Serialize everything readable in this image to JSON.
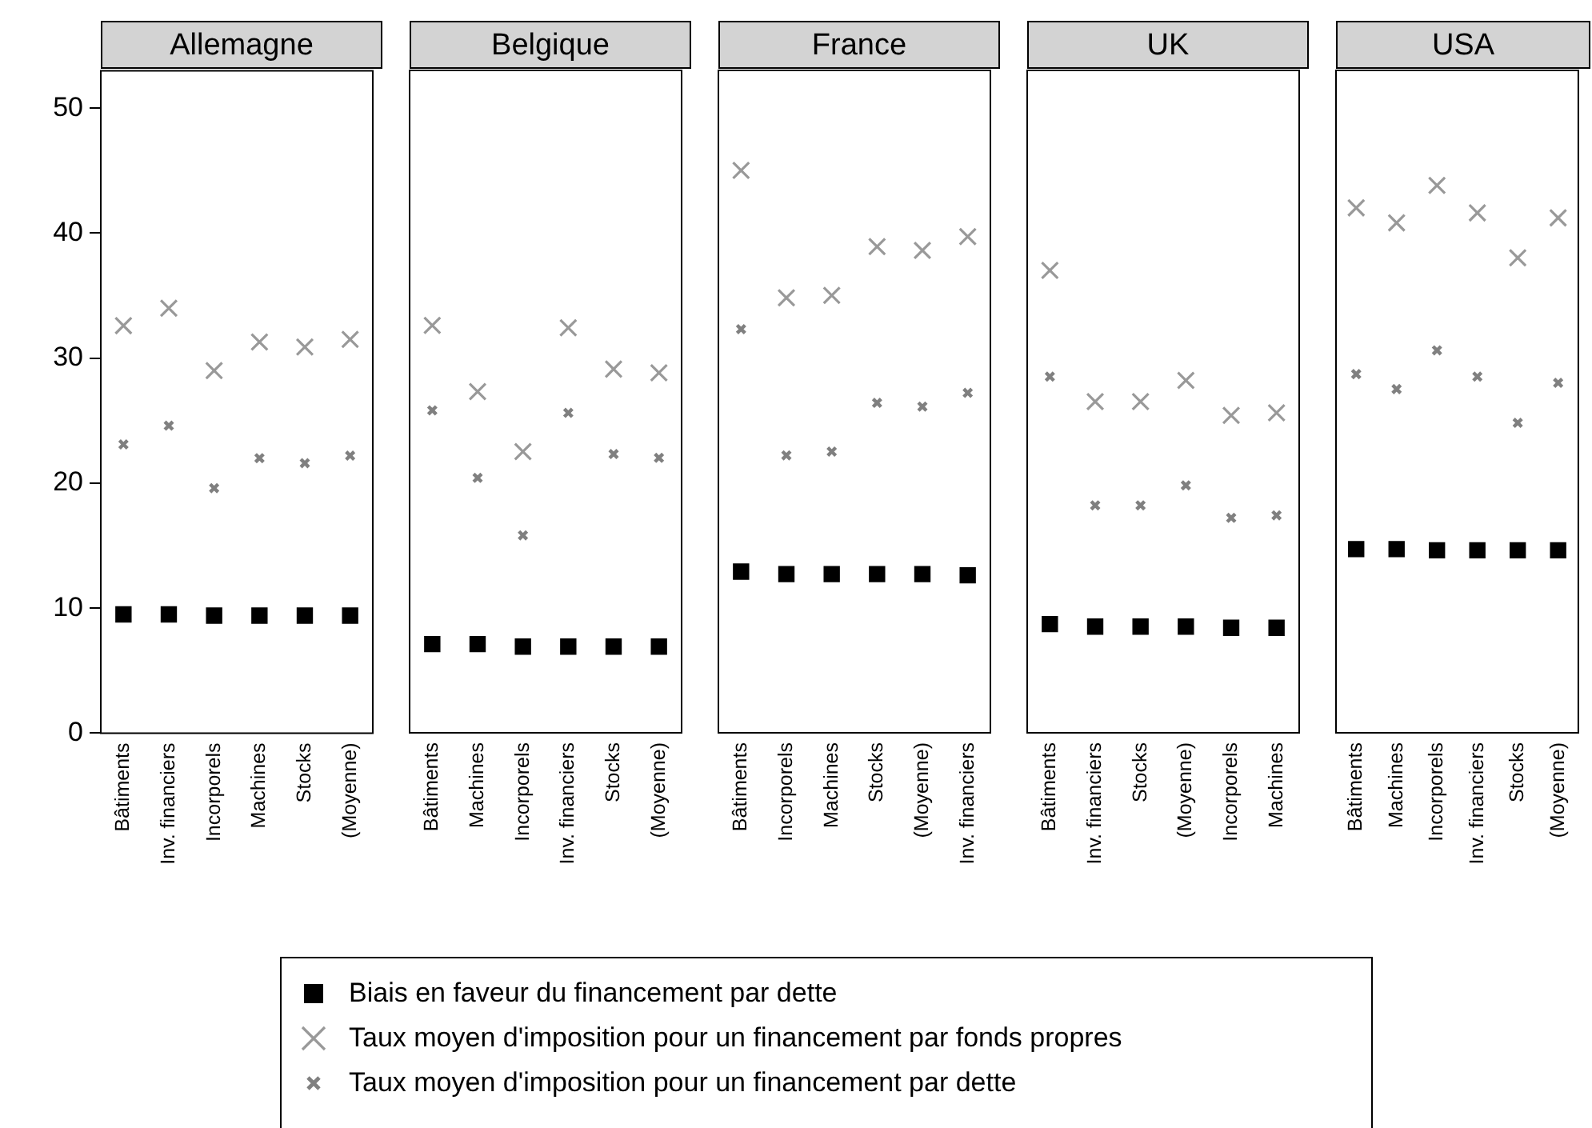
{
  "chart_data": [
    {
      "type": "scatter",
      "title": "Allemagne",
      "categories": [
        "Bâtiments",
        "Inv. financiers",
        "Incorporels",
        "Machines",
        "Stocks",
        "(Moyenne)"
      ],
      "ylim": [
        0,
        53
      ],
      "yticks": [
        0,
        10,
        20,
        30,
        40,
        50
      ],
      "grid": false,
      "legend": "bottom",
      "series": [
        {
          "name": "Biais en faveur du financement par dette",
          "color": "#000000",
          "marker": "square",
          "values": [
            9.5,
            9.5,
            9.4,
            9.4,
            9.4,
            9.4
          ]
        },
        {
          "name": "Taux moyen d'imposition pour un financement par fonds propres",
          "color": "#999999",
          "marker": "cross",
          "values": [
            32.6,
            34.0,
            29.0,
            31.3,
            30.9,
            31.5
          ]
        },
        {
          "name": "Taux moyen d'imposition pour un financement par dette",
          "color": "#808080",
          "marker": "cross",
          "values": [
            23.1,
            24.6,
            19.6,
            22.0,
            21.6,
            22.2
          ]
        }
      ]
    },
    {
      "type": "scatter",
      "title": "Belgique",
      "categories": [
        "Bâtiments",
        "Machines",
        "Incorporels",
        "Inv. financiers",
        "Stocks",
        "(Moyenne)"
      ],
      "ylim": [
        0,
        53
      ],
      "grid": false,
      "tick_labels": "x",
      "series": [
        {
          "color": "#000000",
          "marker": "square",
          "values": [
            7.1,
            7.1,
            6.9,
            6.9,
            6.9,
            6.9
          ]
        },
        {
          "color": "#999999",
          "marker": "cross",
          "values": [
            32.6,
            27.3,
            22.5,
            32.4,
            29.1,
            28.8
          ]
        },
        {
          "color": "#808080",
          "marker": "cross",
          "values": [
            25.8,
            20.4,
            15.8,
            25.6,
            22.3,
            22.0
          ]
        }
      ]
    },
    {
      "type": "scatter",
      "title": "France",
      "categories": [
        "Bâtiments",
        "Incorporels",
        "Machines",
        "Stocks",
        "(Moyenne)",
        "Inv. financiers"
      ],
      "ylim": [
        0,
        53
      ],
      "grid": false,
      "tick_labels": "x",
      "series": [
        {
          "color": "#000000",
          "marker": "square",
          "values": [
            12.9,
            12.7,
            12.7,
            12.7,
            12.7,
            12.6
          ]
        },
        {
          "color": "#999999",
          "marker": "cross",
          "values": [
            45.0,
            34.8,
            35.0,
            38.9,
            38.6,
            39.7
          ]
        },
        {
          "color": "#808080",
          "marker": "cross",
          "values": [
            32.3,
            22.2,
            22.5,
            26.4,
            26.1,
            27.2
          ]
        }
      ]
    },
    {
      "type": "scatter",
      "title": "UK",
      "categories": [
        "Bâtiments",
        "Inv. financiers",
        "Stocks",
        "(Moyenne)",
        "Incorporels",
        "Machines"
      ],
      "ylim": [
        0,
        53
      ],
      "grid": false,
      "tick_labels": "x",
      "series": [
        {
          "color": "#000000",
          "marker": "square",
          "values": [
            8.7,
            8.5,
            8.5,
            8.5,
            8.4,
            8.4
          ]
        },
        {
          "color": "#999999",
          "marker": "cross",
          "values": [
            37.0,
            26.5,
            26.5,
            28.2,
            25.4,
            25.6
          ]
        },
        {
          "color": "#808080",
          "marker": "cross",
          "values": [
            28.5,
            18.2,
            18.2,
            19.8,
            17.2,
            17.4
          ]
        }
      ]
    },
    {
      "type": "scatter",
      "title": "USA",
      "categories": [
        "Bâtiments",
        "Machines",
        "Incorporels",
        "Inv. financiers",
        "Stocks",
        "(Moyenne)"
      ],
      "ylim": [
        0,
        53
      ],
      "grid": false,
      "tick_labels": "x",
      "series": [
        {
          "color": "#000000",
          "marker": "square",
          "values": [
            14.7,
            14.7,
            14.6,
            14.6,
            14.6,
            14.6
          ]
        },
        {
          "color": "#999999",
          "marker": "cross",
          "values": [
            42.0,
            40.8,
            43.8,
            41.6,
            38.0,
            41.2
          ]
        },
        {
          "color": "#808080",
          "marker": "cross",
          "values": [
            28.7,
            27.5,
            30.6,
            28.5,
            24.8,
            28.0
          ]
        }
      ]
    }
  ]
}
